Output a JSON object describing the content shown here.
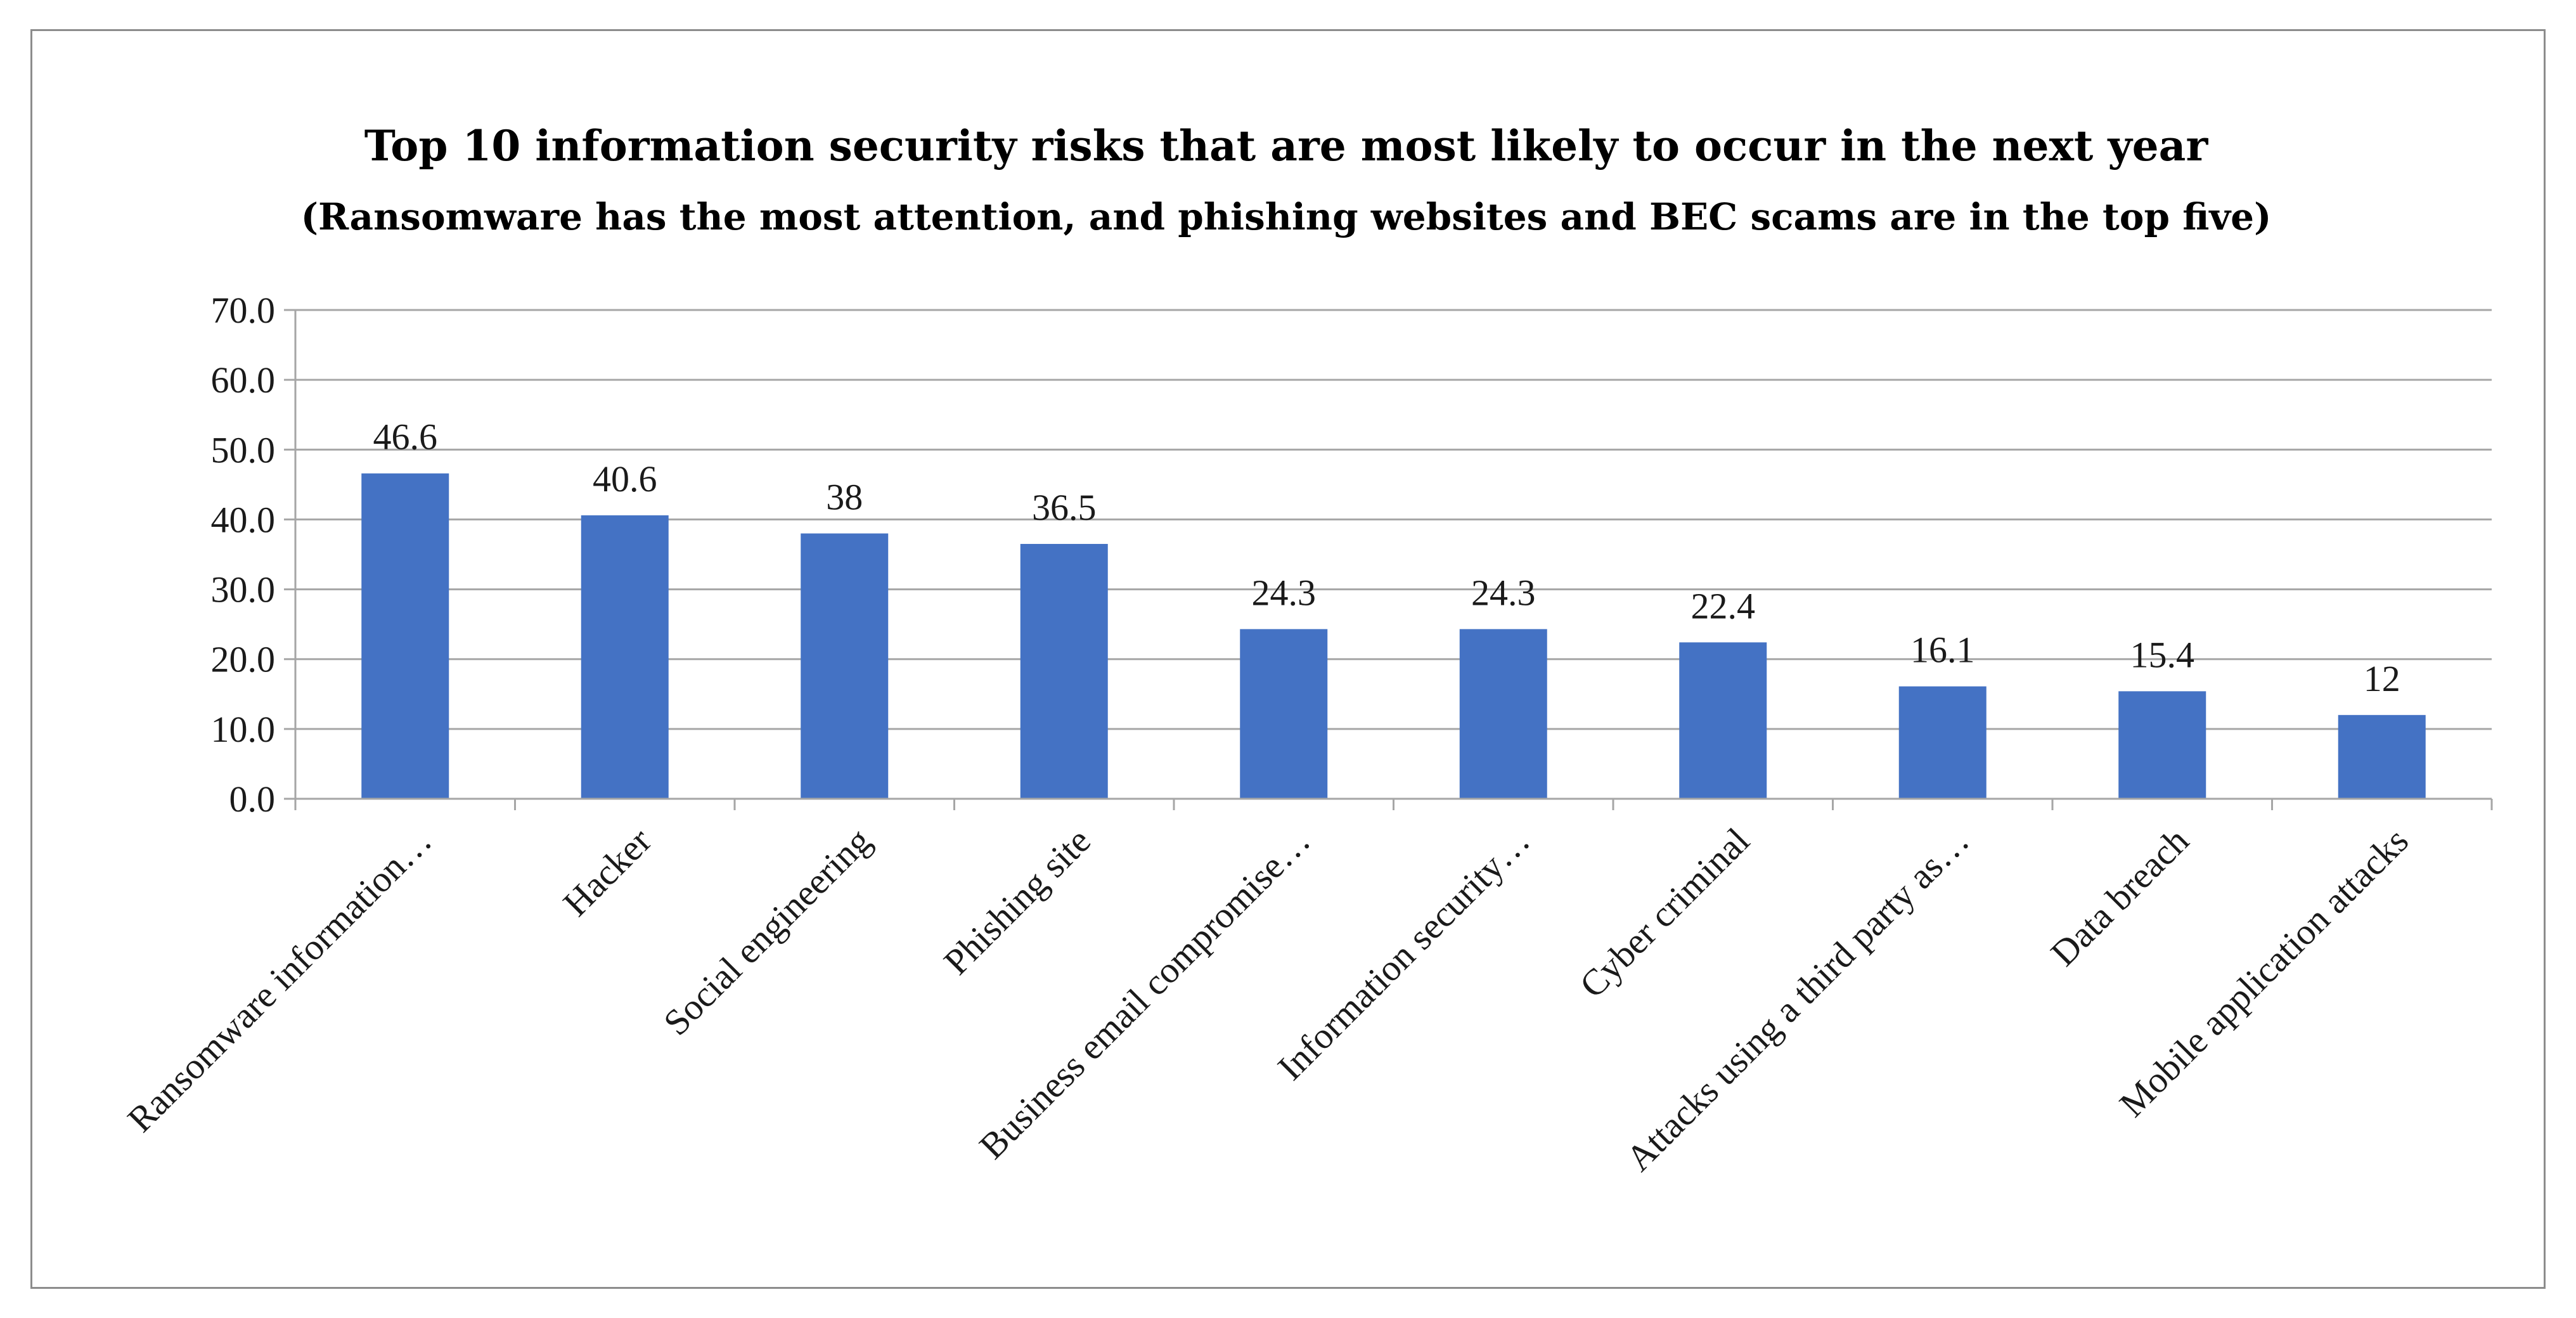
{
  "chart_data": {
    "type": "bar",
    "title": "Top 10 information security risks that are most likely to occur in the next year",
    "subtitle": "(Ransomware has the most attention, and phishing websites and BEC scams are in the top five)",
    "categories": [
      "Ransomware information…",
      "Hacker",
      "Social engineering",
      "Phishing site",
      "Business email compromise…",
      "Information security…",
      "Cyber criminal",
      "Attacks using a third party as…",
      "Data breach",
      "Mobile application attacks"
    ],
    "values": [
      46.6,
      40.6,
      38,
      36.5,
      24.3,
      24.3,
      22.4,
      16.1,
      15.4,
      12
    ],
    "value_labels": [
      "46.6",
      "40.6",
      "38",
      "36.5",
      "24.3",
      "24.3",
      "22.4",
      "16.1",
      "15.4",
      "12"
    ],
    "y_ticks": [
      "0.0",
      "10.0",
      "20.0",
      "30.0",
      "40.0",
      "50.0",
      "60.0",
      "70.0"
    ],
    "ylim": [
      0,
      70
    ],
    "grid": true,
    "legend": "none",
    "bar_color": "#4472c4",
    "grid_color": "#a6a6a6"
  }
}
